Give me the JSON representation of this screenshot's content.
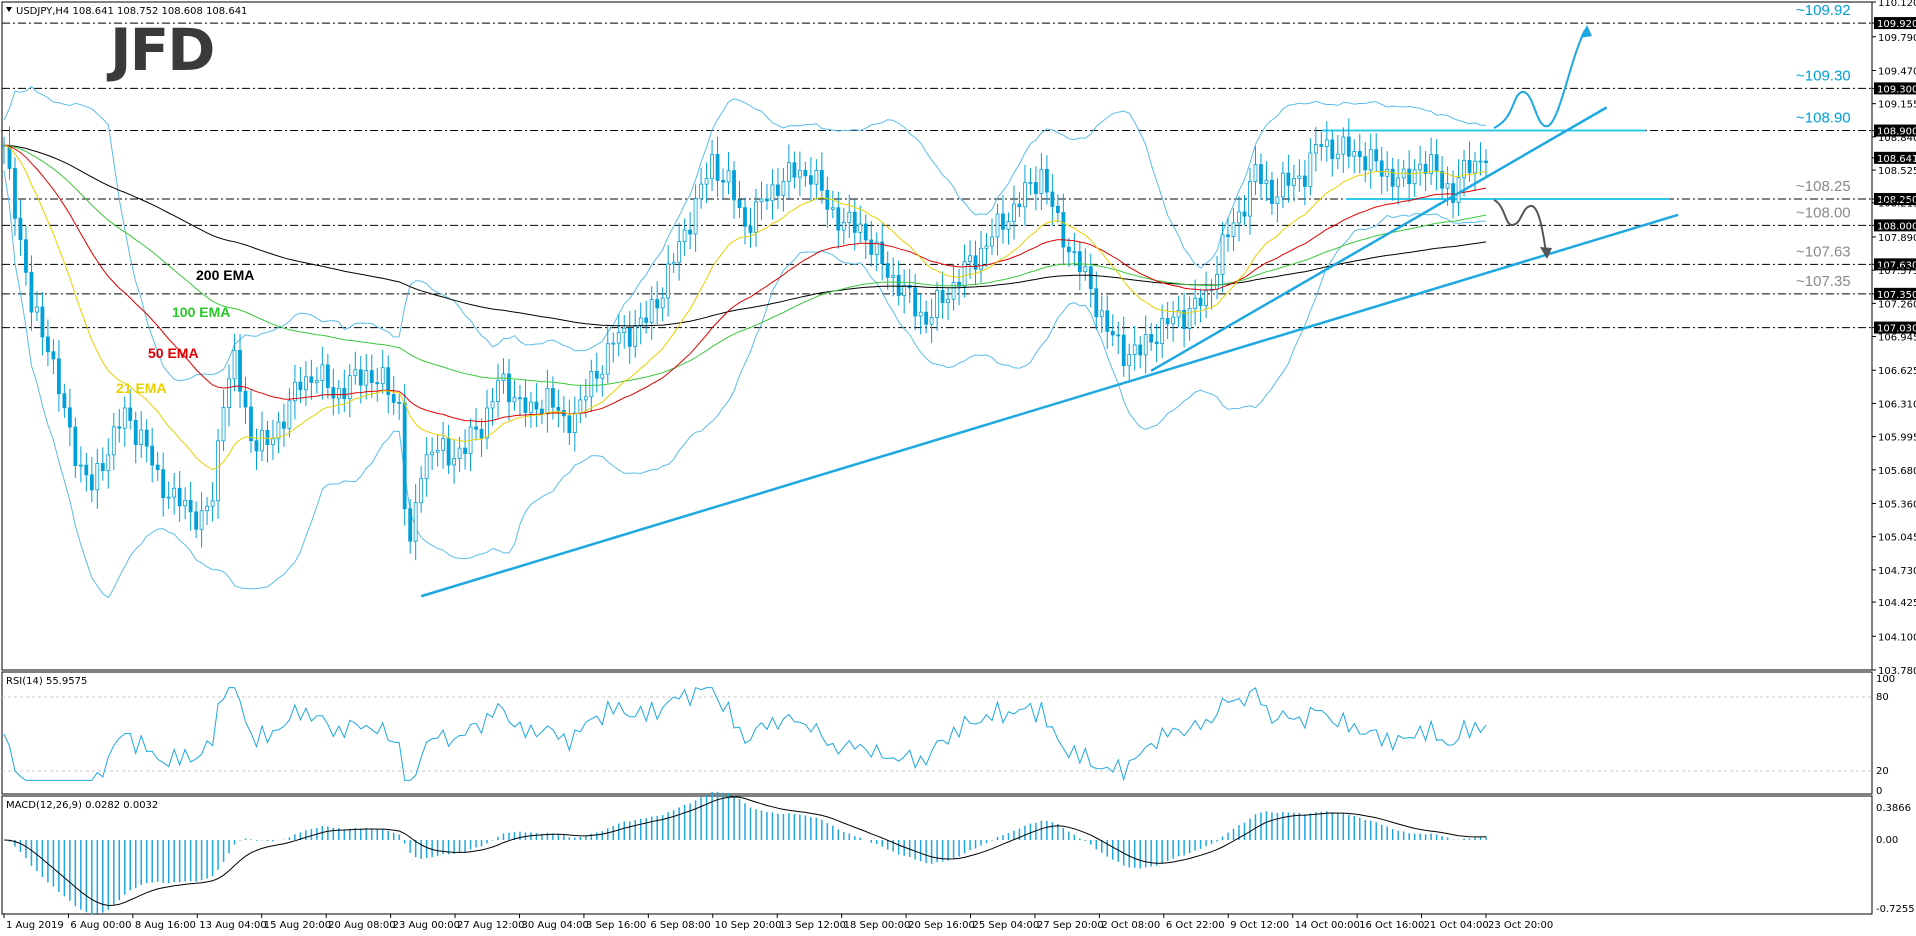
{
  "header": {
    "symbol_info": "USDJPY,H4  108.641 108.752 108.608 108.641"
  },
  "logo_text": "JFD",
  "colors": {
    "price": "#00a0d8",
    "ema21": "#e8d000",
    "ema50": "#e00000",
    "ema100": "#3cc83c",
    "ema200": "#000000",
    "bollinger": "#5bbde8",
    "trendline": "#1ea8e0",
    "level_line": "#000000",
    "label_box": "#000000",
    "arrow_up": "#1ea8e0",
    "arrow_down": "#555555"
  },
  "rsi": {
    "label": "RSI(14) 55.9575",
    "scale": [
      "100",
      "80",
      "20",
      "0"
    ]
  },
  "macd": {
    "label": "MACD(12,26,9) 0.0282 0.0032",
    "scale": [
      "0.3866",
      "0.00",
      "-0.7255"
    ]
  },
  "chart_data": {
    "type": "candlestick",
    "symbol": "USDJPY",
    "timeframe": "H4",
    "ohlc_last": {
      "open": 108.641,
      "high": 108.752,
      "low": 108.608,
      "close": 108.641
    },
    "ylim": [
      103.78,
      110.12
    ],
    "y_ticks": [
      "110.120",
      "109.920",
      "109.790",
      "109.470",
      "109.300",
      "109.155",
      "108.900",
      "108.840",
      "108.641",
      "108.525",
      "108.250",
      "108.215",
      "108.000",
      "107.890",
      "107.630",
      "107.575",
      "107.350",
      "107.260",
      "107.030",
      "106.945",
      "106.625",
      "106.310",
      "105.995",
      "105.680",
      "105.360",
      "105.045",
      "104.730",
      "104.425",
      "104.100",
      "103.780"
    ],
    "x_labels": [
      "1 Aug 2019",
      "6 Aug 00:00",
      "8 Aug 16:00",
      "13 Aug 04:00",
      "15 Aug 20:00",
      "20 Aug 08:00",
      "23 Aug 00:00",
      "27 Aug 12:00",
      "30 Aug 04:00",
      "3 Sep 16:00",
      "6 Sep 08:00",
      "10 Sep 20:00",
      "13 Sep 12:00",
      "18 Sep 00:00",
      "20 Sep 16:00",
      "25 Sep 04:00",
      "27 Sep 20:00",
      "2 Oct 08:00",
      "6 Oct 22:00",
      "9 Oct 12:00",
      "14 Oct 00:00",
      "16 Oct 16:00",
      "21 Oct 04:00",
      "23 Oct 20:00"
    ],
    "levels": [
      {
        "label": "~109.92",
        "value": 109.92,
        "box": "109.920",
        "highlight": true
      },
      {
        "label": "~109.30",
        "value": 109.3,
        "box": "109.300",
        "highlight": true
      },
      {
        "label": "~108.90",
        "value": 108.9,
        "box": "108.900",
        "highlight": true
      },
      {
        "label": "~108.25",
        "value": 108.25,
        "box": "108.250",
        "highlight": false
      },
      {
        "label": "~108.00",
        "value": 108.0,
        "box": "108.000",
        "highlight": false
      },
      {
        "label": "~107.63",
        "value": 107.63,
        "box": "107.630",
        "highlight": false
      },
      {
        "label": "~107.35",
        "value": 107.35,
        "box": "107.350",
        "highlight": false
      },
      {
        "label": "",
        "value": 107.03,
        "box": "107.030",
        "highlight": false
      }
    ],
    "current_price_box": "108.641",
    "ema_labels": [
      "200 EMA",
      "100 EMA",
      "50 EMA",
      "21 EMA"
    ],
    "close_path": [
      [
        0,
        108.7
      ],
      [
        2,
        108.2
      ],
      [
        5,
        107.2
      ],
      [
        8,
        106.9
      ],
      [
        11,
        106.2
      ],
      [
        14,
        105.7
      ],
      [
        16,
        105.5
      ],
      [
        19,
        105.9
      ],
      [
        22,
        106.2
      ],
      [
        25,
        106.0
      ],
      [
        28,
        105.6
      ],
      [
        31,
        105.4
      ],
      [
        34,
        105.3
      ],
      [
        36,
        105.2
      ],
      [
        38,
        105.4
      ],
      [
        40,
        106.4
      ],
      [
        42,
        106.7
      ],
      [
        45,
        106.0
      ],
      [
        48,
        105.9
      ],
      [
        51,
        106.2
      ],
      [
        54,
        106.5
      ],
      [
        57,
        106.6
      ],
      [
        60,
        106.4
      ],
      [
        63,
        106.5
      ],
      [
        66,
        106.6
      ],
      [
        69,
        106.5
      ],
      [
        72,
        106.3
      ],
      [
        73,
        105.4
      ],
      [
        74,
        104.9
      ],
      [
        76,
        105.7
      ],
      [
        78,
        105.9
      ],
      [
        81,
        105.8
      ],
      [
        84,
        105.9
      ],
      [
        87,
        106.1
      ],
      [
        90,
        106.5
      ],
      [
        93,
        106.4
      ],
      [
        96,
        106.2
      ],
      [
        99,
        106.4
      ],
      [
        102,
        106.1
      ],
      [
        105,
        106.3
      ],
      [
        108,
        106.6
      ],
      [
        111,
        106.9
      ],
      [
        114,
        107.0
      ],
      [
        117,
        107.1
      ],
      [
        120,
        107.4
      ],
      [
        123,
        107.8
      ],
      [
        126,
        108.2
      ],
      [
        129,
        108.6
      ],
      [
        132,
        108.4
      ],
      [
        135,
        108.0
      ],
      [
        138,
        108.2
      ],
      [
        141,
        108.4
      ],
      [
        144,
        108.5
      ],
      [
        147,
        108.5
      ],
      [
        150,
        108.2
      ],
      [
        153,
        108.0
      ],
      [
        156,
        108.0
      ],
      [
        159,
        107.7
      ],
      [
        162,
        107.5
      ],
      [
        165,
        107.3
      ],
      [
        168,
        107.1
      ],
      [
        171,
        107.3
      ],
      [
        174,
        107.5
      ],
      [
        177,
        107.7
      ],
      [
        180,
        107.9
      ],
      [
        183,
        108.1
      ],
      [
        186,
        108.3
      ],
      [
        189,
        108.5
      ],
      [
        192,
        108.0
      ],
      [
        195,
        107.7
      ],
      [
        198,
        107.4
      ],
      [
        201,
        107.0
      ],
      [
        204,
        106.8
      ],
      [
        207,
        106.8
      ],
      [
        210,
        107.0
      ],
      [
        213,
        107.1
      ],
      [
        216,
        107.2
      ],
      [
        219,
        107.3
      ],
      [
        222,
        107.8
      ],
      [
        225,
        108.1
      ],
      [
        228,
        108.5
      ],
      [
        231,
        108.3
      ],
      [
        234,
        108.4
      ],
      [
        237,
        108.5
      ],
      [
        240,
        108.8
      ],
      [
        243,
        108.7
      ],
      [
        246,
        108.7
      ],
      [
        249,
        108.6
      ],
      [
        252,
        108.5
      ],
      [
        255,
        108.4
      ],
      [
        258,
        108.6
      ],
      [
        261,
        108.5
      ],
      [
        264,
        108.3
      ],
      [
        267,
        108.6
      ],
      [
        270,
        108.64
      ]
    ],
    "series": [
      {
        "name": "200 EMA"
      },
      {
        "name": "100 EMA"
      },
      {
        "name": "50 EMA"
      },
      {
        "name": "21 EMA"
      }
    ],
    "trendlines": [
      {
        "from": [
          76,
          104.48
        ],
        "to": [
          305,
          108.1
        ]
      },
      {
        "from": [
          209,
          106.62
        ],
        "to": [
          292,
          109.12
        ]
      }
    ],
    "range_box": {
      "top": 108.9,
      "bottom": 108.25
    }
  }
}
